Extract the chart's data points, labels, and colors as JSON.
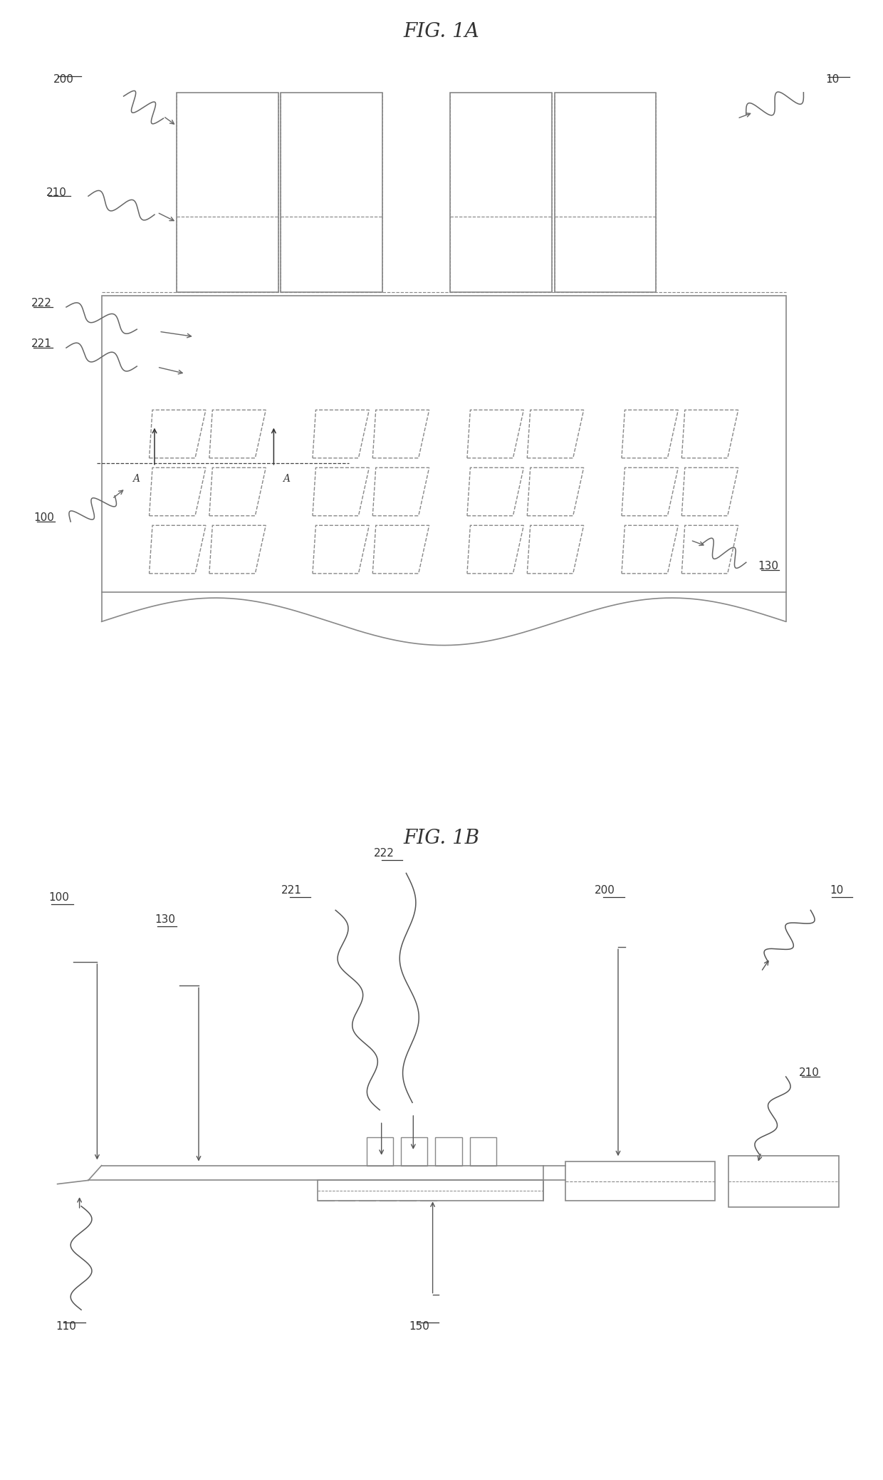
{
  "fig_title_1a": "FIG. 1A",
  "fig_title_1b": "FIG. 1B",
  "bg_color": "#ffffff",
  "lc": "#888888",
  "tc": "#333333",
  "lfs": 11,
  "tfs": 20
}
